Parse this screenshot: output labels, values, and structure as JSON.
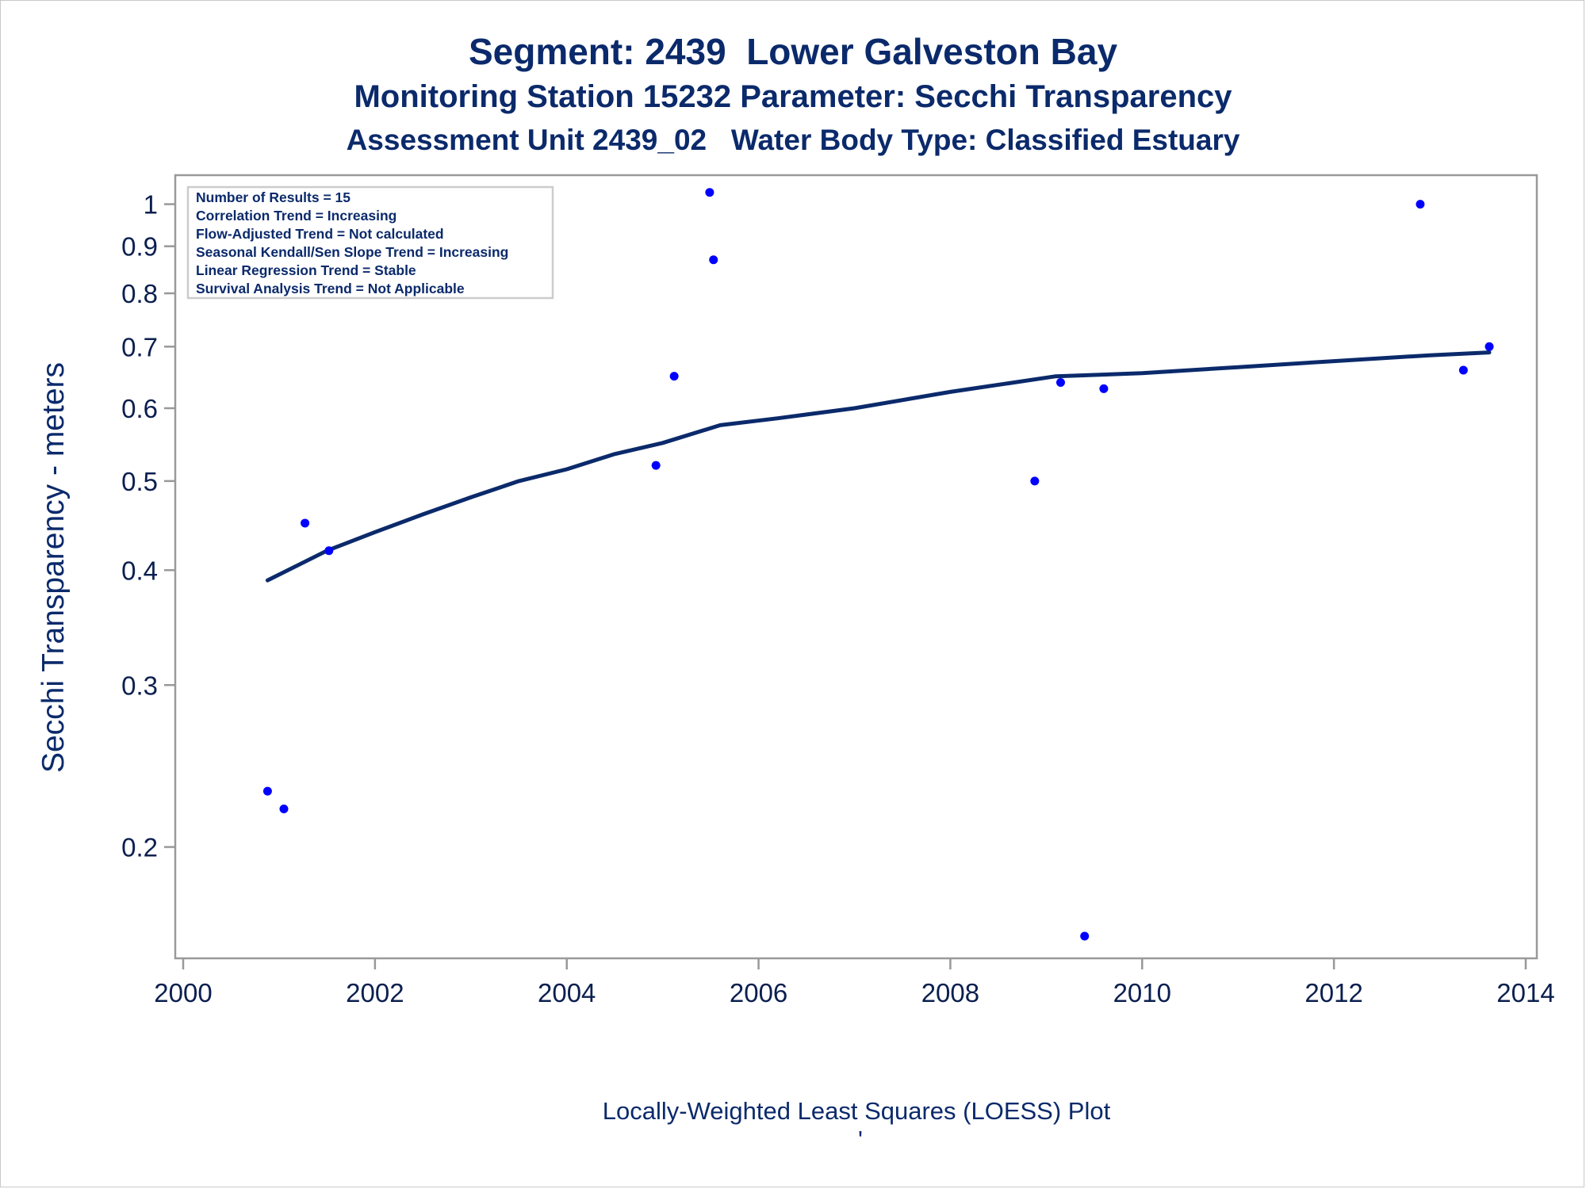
{
  "titles": {
    "line1": "Segment: 2439  Lower Galveston Bay",
    "line2": "Monitoring Station 15232 Parameter: Secchi Transparency",
    "line3": "Assessment Unit 2439_02   Water Body Type: Classified Estuary"
  },
  "stats_box": {
    "lines": [
      "Number of Results = 15",
      "Correlation Trend = Increasing",
      "Flow-Adjusted Trend = Not calculated",
      "Seasonal Kendall/Sen Slope Trend = Increasing",
      "Linear Regression Trend = Stable",
      "Survival Analysis Trend = Not Applicable"
    ]
  },
  "footnote": "Locally-Weighted Least Squares (LOESS) Plot",
  "footnote_mark": "'",
  "colors": {
    "title": "#0b2a6b",
    "points": "#0000ff",
    "loess_line": "#0b2a6b",
    "frame": "#999999"
  },
  "chart_data": {
    "type": "scatter",
    "ylabel": "Secchi Transparency - meters",
    "xlabel": "",
    "y_scale": "log",
    "xlim": [
      2000,
      2014
    ],
    "ylim": [
      0.155,
      1.05
    ],
    "x_ticks": [
      2000,
      2002,
      2004,
      2006,
      2008,
      2010,
      2012,
      2014
    ],
    "y_ticks": [
      0.2,
      0.3,
      0.4,
      0.5,
      0.6,
      0.7,
      0.8,
      0.9,
      1
    ],
    "y_tick_labels": [
      "0.2",
      "0.3",
      "0.4",
      "0.5",
      "0.6",
      "0.7",
      "0.8",
      "0.9",
      "1"
    ],
    "grid": false,
    "legend": "none",
    "series": [
      {
        "kind": "points",
        "points": [
          {
            "x": 2000.88,
            "y": 0.23
          },
          {
            "x": 2001.05,
            "y": 0.22
          },
          {
            "x": 2001.27,
            "y": 0.45
          },
          {
            "x": 2001.52,
            "y": 0.42
          },
          {
            "x": 2004.93,
            "y": 0.52
          },
          {
            "x": 2005.12,
            "y": 0.65
          },
          {
            "x": 2005.49,
            "y": 1.03
          },
          {
            "x": 2005.53,
            "y": 0.87
          },
          {
            "x": 2008.88,
            "y": 0.5
          },
          {
            "x": 2009.15,
            "y": 0.64
          },
          {
            "x": 2009.4,
            "y": 0.16
          },
          {
            "x": 2009.6,
            "y": 0.63
          },
          {
            "x": 2012.9,
            "y": 1.0
          },
          {
            "x": 2013.35,
            "y": 0.66
          },
          {
            "x": 2013.62,
            "y": 0.7
          }
        ]
      },
      {
        "kind": "loess",
        "points": [
          {
            "x": 2000.88,
            "y": 0.39
          },
          {
            "x": 2001.5,
            "y": 0.42
          },
          {
            "x": 2002.0,
            "y": 0.44
          },
          {
            "x": 2002.5,
            "y": 0.46
          },
          {
            "x": 2003.0,
            "y": 0.48
          },
          {
            "x": 2003.5,
            "y": 0.5
          },
          {
            "x": 2004.0,
            "y": 0.515
          },
          {
            "x": 2004.5,
            "y": 0.535
          },
          {
            "x": 2005.0,
            "y": 0.55
          },
          {
            "x": 2005.6,
            "y": 0.575
          },
          {
            "x": 2006.2,
            "y": 0.585
          },
          {
            "x": 2007.0,
            "y": 0.6
          },
          {
            "x": 2008.0,
            "y": 0.625
          },
          {
            "x": 2009.1,
            "y": 0.65
          },
          {
            "x": 2010.0,
            "y": 0.655
          },
          {
            "x": 2011.0,
            "y": 0.665
          },
          {
            "x": 2012.0,
            "y": 0.675
          },
          {
            "x": 2013.0,
            "y": 0.685
          },
          {
            "x": 2013.62,
            "y": 0.69
          }
        ]
      }
    ]
  }
}
